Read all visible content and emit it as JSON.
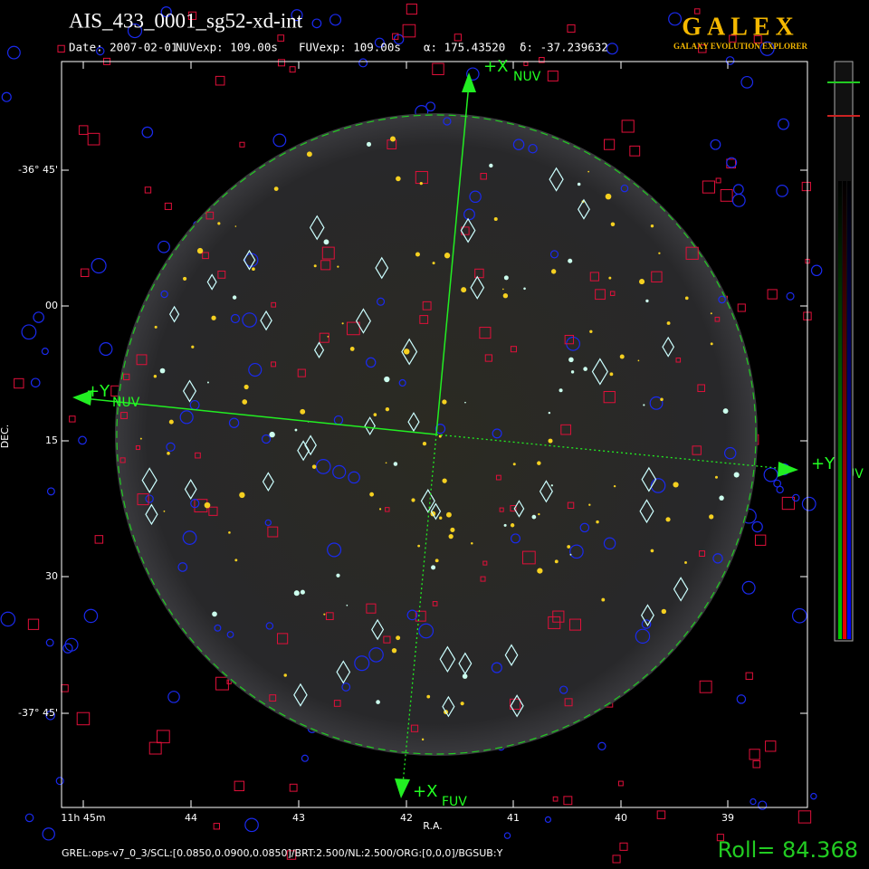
{
  "header": {
    "title": "AIS_433_0001_sg52-xd-int",
    "info": [
      "Date: 2007-02-01",
      "NUVexp: 109.00s",
      "FUVexp: 109.00s",
      "α: 175.43520",
      "δ: -37.239632"
    ],
    "logo": "GALEX",
    "logo_sub": "GALAXY EVOLUTION EXPLORER"
  },
  "axes": {
    "y_labels": [
      "-36° 45'",
      "00",
      "15",
      "30",
      "-37° 45'"
    ],
    "y_title": "DEC.",
    "x_labels": [
      "11h 45m",
      "44",
      "43",
      "42",
      "41",
      "40",
      "39"
    ],
    "x_title": "R.A."
  },
  "arrows": [
    {
      "main": "+X",
      "sub": "NUV"
    },
    {
      "main": "+Y",
      "sub": "NUV"
    },
    {
      "main": "+Y",
      "sub": "FUV"
    },
    {
      "main": "+X",
      "sub": "FUV"
    }
  ],
  "footer": {
    "params": "GREL:ops-v7_0_3/SCL:[0.0850,0.0900,0.0850]/BRT:2.500/NL:2.500/ORG:[0,0,0]/BGSUB:Y",
    "roll": "Roll=  84.368"
  }
}
